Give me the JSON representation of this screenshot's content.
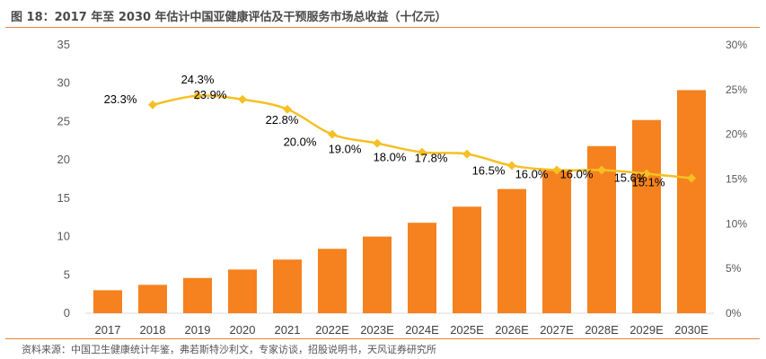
{
  "header": {
    "title": "图 18：2017 年至 2030 年估计中国亚健康评估及干预服务市场总收益（十亿元）"
  },
  "footer": {
    "source": "资料来源：中国卫生健康统计年鉴，弗若斯特沙利文，专家访谈，招股说明书，天风证券研究所"
  },
  "colors": {
    "bar": "#f5821f",
    "line": "#f5c024",
    "accent": "#e8833a"
  },
  "chart_data": {
    "type": "bar",
    "categories": [
      "2017",
      "2018",
      "2019",
      "2020",
      "2021",
      "2022E",
      "2023E",
      "2024E",
      "2025E",
      "2026E",
      "2027E",
      "2028E",
      "2029E",
      "2030E"
    ],
    "series": [
      {
        "type": "bar",
        "axis": "left",
        "values": [
          3.0,
          3.7,
          4.6,
          5.7,
          7.0,
          8.4,
          10.0,
          11.8,
          13.9,
          16.2,
          18.8,
          21.8,
          25.2,
          29.1
        ]
      },
      {
        "type": "line",
        "axis": "right",
        "values": [
          null,
          23.3,
          24.3,
          23.9,
          22.8,
          20.0,
          19.0,
          18.0,
          17.8,
          16.5,
          16.0,
          16.0,
          15.6,
          15.1
        ],
        "labels": [
          "",
          "23.3%",
          "24.3%",
          "23.9%",
          "22.8%",
          "20.0%",
          "19.0%",
          "18.0%",
          "17.8%",
          "16.5%",
          "16.0%",
          "16.0%",
          "15.6%",
          "15.1%"
        ]
      }
    ],
    "ylim": [
      0,
      35
    ],
    "yticks": [
      "0",
      "5",
      "10",
      "15",
      "20",
      "25",
      "30",
      "35"
    ],
    "y2lim": [
      0,
      30
    ],
    "y2ticks": [
      "0%",
      "5%",
      "10%",
      "15%",
      "20%",
      "25%",
      "30%"
    ],
    "grid": false
  }
}
